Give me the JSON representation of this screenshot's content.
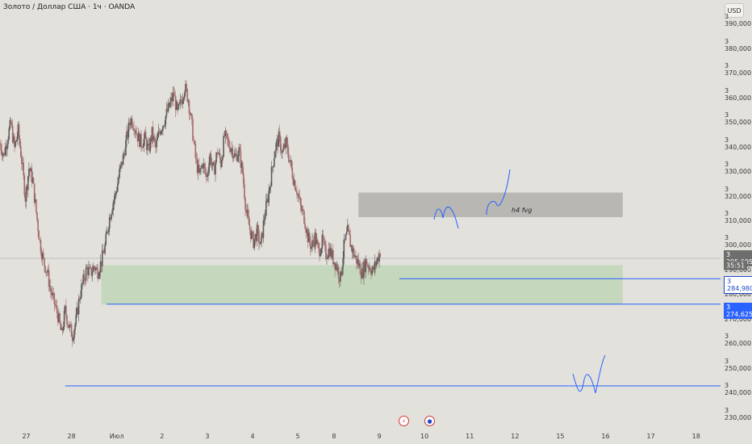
{
  "title": "Золото / Доллар США · 1ч · OANDA",
  "currency": "USD",
  "chart_data": {
    "type": "candlestick",
    "ylim": [
      3225000,
      3395000
    ],
    "y_ticks": [
      {
        "v": 3390000,
        "label": "3 390,000"
      },
      {
        "v": 3380000,
        "label": "3 380,000"
      },
      {
        "v": 3370000,
        "label": "3 370,000"
      },
      {
        "v": 3360000,
        "label": "3 360,000"
      },
      {
        "v": 3350000,
        "label": "3 350,000"
      },
      {
        "v": 3340000,
        "label": "3 340,000"
      },
      {
        "v": 3330000,
        "label": "3 330,000"
      },
      {
        "v": 3320000,
        "label": "3 320,000"
      },
      {
        "v": 3310000,
        "label": "3 310,000"
      },
      {
        "v": 3300000,
        "label": "3 300,000"
      },
      {
        "v": 3290000,
        "label": "3 290,000"
      },
      {
        "v": 3280000,
        "label": "3 280,000"
      },
      {
        "v": 3270000,
        "label": "3 270,000"
      },
      {
        "v": 3260000,
        "label": "3 260,000"
      },
      {
        "v": 3250000,
        "label": "3 250,000"
      },
      {
        "v": 3240000,
        "label": "3 240,000"
      },
      {
        "v": 3230000,
        "label": "3 230,000"
      }
    ],
    "x_ticks": [
      {
        "i": -13.5,
        "label": "27"
      },
      {
        "i": 11.5,
        "label": "28"
      },
      {
        "i": 36.5,
        "label": "Июл"
      },
      {
        "i": 61.5,
        "label": "2"
      },
      {
        "i": 86.5,
        "label": "3"
      },
      {
        "i": 111.5,
        "label": "4"
      },
      {
        "i": 136.5,
        "label": "5"
      },
      {
        "i": 156.5,
        "label": "8"
      },
      {
        "i": 181.5,
        "label": "9"
      },
      {
        "i": 206.5,
        "label": "10"
      },
      {
        "i": 231.5,
        "label": "11"
      },
      {
        "i": 256.5,
        "label": "12"
      },
      {
        "i": 281.5,
        "label": "15"
      },
      {
        "i": 306.5,
        "label": "16"
      },
      {
        "i": 331.5,
        "label": "17"
      },
      {
        "i": 356.5,
        "label": "18"
      }
    ],
    "x_range": [
      -28,
      370
    ],
    "path": [
      [
        -28,
        3340
      ],
      [
        -26,
        3335
      ],
      [
        -24,
        3342
      ],
      [
        -22,
        3348
      ],
      [
        -20,
        3338
      ],
      [
        -18,
        3345
      ],
      [
        -16,
        3333
      ],
      [
        -14,
        3318
      ],
      [
        -12,
        3330
      ],
      [
        -10,
        3325
      ],
      [
        -8,
        3312
      ],
      [
        -6,
        3300
      ],
      [
        -4,
        3292
      ],
      [
        -2,
        3288
      ],
      [
        0,
        3280
      ],
      [
        2,
        3275
      ],
      [
        4,
        3270
      ],
      [
        6,
        3262
      ],
      [
        8,
        3272
      ],
      [
        10,
        3266
      ],
      [
        12,
        3262
      ],
      [
        14,
        3268
      ],
      [
        16,
        3278
      ],
      [
        18,
        3284
      ],
      [
        20,
        3289
      ],
      [
        22,
        3287
      ],
      [
        24,
        3290
      ],
      [
        26,
        3288
      ],
      [
        28,
        3292
      ],
      [
        30,
        3298
      ],
      [
        32,
        3308
      ],
      [
        34,
        3315
      ],
      [
        36,
        3320
      ],
      [
        38,
        3328
      ],
      [
        40,
        3334
      ],
      [
        42,
        3342
      ],
      [
        44,
        3350
      ],
      [
        46,
        3348
      ],
      [
        48,
        3343
      ],
      [
        50,
        3340
      ],
      [
        52,
        3342
      ],
      [
        54,
        3337
      ],
      [
        56,
        3344
      ],
      [
        58,
        3338
      ],
      [
        60,
        3345
      ],
      [
        62,
        3348
      ],
      [
        64,
        3352
      ],
      [
        66,
        3356
      ],
      [
        68,
        3360
      ],
      [
        70,
        3352
      ],
      [
        72,
        3357
      ],
      [
        74,
        3363
      ],
      [
        76,
        3358
      ],
      [
        78,
        3347
      ],
      [
        80,
        3334
      ],
      [
        82,
        3327
      ],
      [
        84,
        3332
      ],
      [
        86,
        3326
      ],
      [
        88,
        3335
      ],
      [
        90,
        3328
      ],
      [
        92,
        3337
      ],
      [
        94,
        3332
      ],
      [
        96,
        3343
      ],
      [
        98,
        3340
      ],
      [
        100,
        3338
      ],
      [
        102,
        3334
      ],
      [
        104,
        3337
      ],
      [
        106,
        3328
      ],
      [
        108,
        3312
      ],
      [
        110,
        3305
      ],
      [
        112,
        3300
      ],
      [
        114,
        3304
      ],
      [
        116,
        3298
      ],
      [
        118,
        3310
      ],
      [
        120,
        3318
      ],
      [
        122,
        3328
      ],
      [
        124,
        3338
      ],
      [
        126,
        3342
      ],
      [
        128,
        3336
      ],
      [
        130,
        3340
      ],
      [
        132,
        3333
      ],
      [
        134,
        3326
      ],
      [
        136,
        3321
      ],
      [
        138,
        3314
      ],
      [
        140,
        3310
      ],
      [
        142,
        3302
      ],
      [
        144,
        3298
      ],
      [
        146,
        3302
      ],
      [
        148,
        3296
      ],
      [
        150,
        3300
      ],
      [
        152,
        3295
      ],
      [
        154,
        3297
      ],
      [
        156,
        3293
      ],
      [
        158,
        3290
      ],
      [
        160,
        3285
      ],
      [
        162,
        3298
      ],
      [
        164,
        3304
      ],
      [
        166,
        3298
      ],
      [
        168,
        3294
      ],
      [
        170,
        3291
      ],
      [
        172,
        3287
      ],
      [
        174,
        3292
      ],
      [
        176,
        3290
      ],
      [
        178,
        3288
      ],
      [
        180,
        3292
      ],
      [
        182,
        3296
      ]
    ],
    "current_price": "3 295,605",
    "countdown": "35:51",
    "fvg_label": "h4 fvg",
    "levels": [
      {
        "price": 3284980,
        "label": "3 284,980",
        "style": "outline"
      },
      {
        "price": 3274625,
        "label": "3 274,625",
        "style": "filled"
      }
    ],
    "zones": [
      {
        "name": "h4-fvg-zone",
        "x0": 170,
        "x1": 316,
        "y0": 3310000,
        "y1": 3320000,
        "color": "#b8b7b3"
      },
      {
        "name": "demand-zone",
        "x0": 28,
        "x1": 316,
        "y0": 3274500,
        "y1": 3290500,
        "color": "#c5d7bc"
      }
    ]
  },
  "colors": {
    "bull": "#5a5a5a",
    "bear": "#a56a6a",
    "line": "#2962ff",
    "bg": "#e3e1dc"
  }
}
